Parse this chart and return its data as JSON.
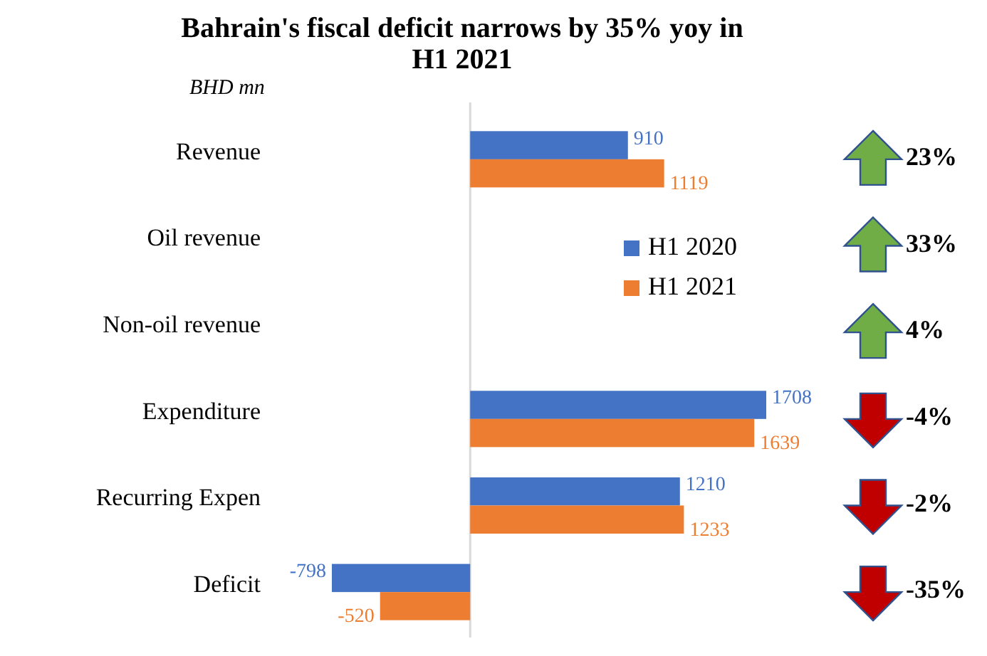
{
  "chart_data": {
    "type": "bar",
    "orientation": "horizontal",
    "title": "Bahrain's fiscal deficit narrows by 35% yoy in H1 2021",
    "subtitle": "BHD mn",
    "categories": [
      "Revenue",
      "Oil revenue",
      "Non-oil revenue",
      "Expenditure",
      "Recurring Expen",
      "Deficit"
    ],
    "series": [
      {
        "name": "H1 2020",
        "color": "#4472c4",
        "values": [
          910,
          null,
          null,
          1708,
          1210,
          -798
        ]
      },
      {
        "name": "H1 2021",
        "color": "#ed7d31",
        "values": [
          1119,
          null,
          null,
          1639,
          1233,
          -520
        ]
      }
    ],
    "data_labels": true,
    "tick_labels": "y",
    "legend": "top",
    "annotations": [
      "23%",
      "33%",
      "4%",
      "-4%",
      "-2%",
      "-35%"
    ]
  }
}
